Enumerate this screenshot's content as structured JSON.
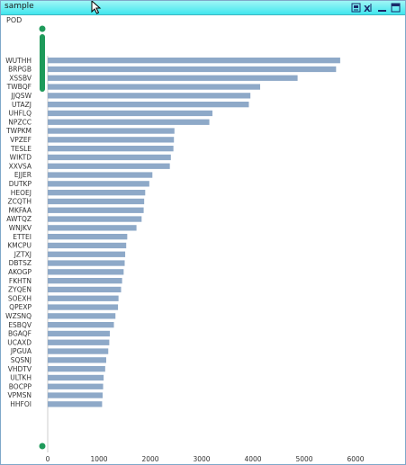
{
  "window": {
    "title": "sample",
    "icons": [
      "export-icon",
      "excel-icon",
      "minimize-icon",
      "maximize-icon"
    ],
    "accent": "#41e6ee"
  },
  "chart_data": {
    "type": "bar",
    "orientation": "horizontal",
    "ylabel": "POD",
    "xlim": [
      0,
      6000
    ],
    "xticks": [
      0,
      1000,
      2000,
      3000,
      4000,
      5000,
      6000
    ],
    "bar_color": "#8ea9c8",
    "categories": [
      "WUTHH",
      "BRPGB",
      "XSSBV",
      "TWBQF",
      "JJQSW",
      "UTAZJ",
      "UHFLQ",
      "NPZCC",
      "TWPKM",
      "VPZEF",
      "TESLE",
      "WIKTD",
      "XXVSA",
      "EJJER",
      "DUTKP",
      "HEOEJ",
      "ZCQTH",
      "MKFAA",
      "AWTQZ",
      "WNJKV",
      "ETTEI",
      "KMCPU",
      "JZTXJ",
      "DBTSZ",
      "AKOGP",
      "FKHTN",
      "ZYQEN",
      "SOEXH",
      "QPEXP",
      "WZSNQ",
      "ESBQV",
      "BGAQF",
      "UCAXD",
      "JPGUA",
      "SQSNJ",
      "VHDTV",
      "ULTKH",
      "BOCPP",
      "VPMSN",
      "HHFOI"
    ],
    "values": [
      5700,
      5620,
      4870,
      4140,
      3950,
      3920,
      3210,
      3150,
      2470,
      2460,
      2450,
      2400,
      2380,
      2040,
      1980,
      1900,
      1880,
      1870,
      1830,
      1730,
      1550,
      1530,
      1510,
      1500,
      1480,
      1450,
      1430,
      1380,
      1370,
      1320,
      1290,
      1210,
      1200,
      1180,
      1140,
      1120,
      1090,
      1080,
      1070,
      1060
    ]
  }
}
